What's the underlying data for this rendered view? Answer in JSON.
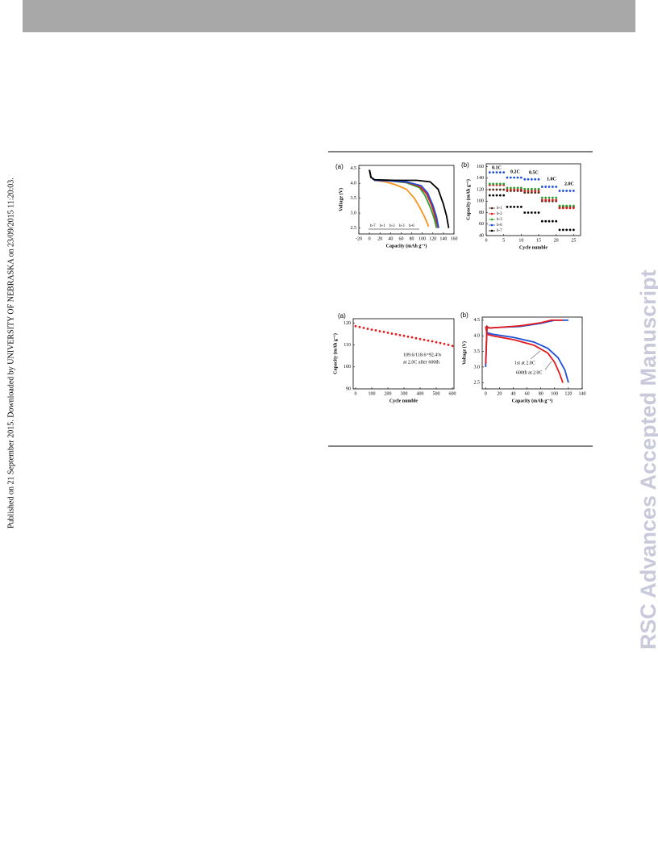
{
  "page": {
    "side_note": "Published on 21 September 2015. Downloaded by UNIVERSITY OF NEBRASKA on 23/09/2015 11:20:03.",
    "watermark": "RSC Advances Accepted Manuscript"
  },
  "chart_data": [
    {
      "type": "line",
      "panel": "(a)",
      "xlabel": "Capacity (mAh g⁻¹)",
      "ylabel": "Voltage (V)",
      "xlim": [
        -20,
        160
      ],
      "xticks": [
        -20,
        0,
        20,
        40,
        60,
        80,
        100,
        120,
        140,
        160
      ],
      "ylim": [
        2.3,
        4.6
      ],
      "yticks": [
        2.5,
        {
          "value": 3,
          "label": "3.0"
        },
        3.5,
        {
          "value": 4,
          "label": "4.0"
        },
        4.5
      ],
      "series": [
        {
          "name": "b-7",
          "color": "#f7941d",
          "x": [
            0,
            3,
            10,
            30,
            50,
            70,
            85,
            95,
            105,
            112
          ],
          "values": [
            4.45,
            4.2,
            4.1,
            4.05,
            3.95,
            3.8,
            3.5,
            3.2,
            2.85,
            2.55
          ]
        },
        {
          "name": "b-1",
          "color": "#2ca02c",
          "x": [
            0,
            3,
            10,
            40,
            70,
            95,
            105,
            115,
            122,
            127
          ],
          "values": [
            4.45,
            4.2,
            4.1,
            4.08,
            4.02,
            3.85,
            3.6,
            3.2,
            2.85,
            2.5
          ]
        },
        {
          "name": "b-2",
          "color": "#e31a1c",
          "x": [
            0,
            3,
            10,
            40,
            70,
            95,
            108,
            118,
            125,
            130
          ],
          "values": [
            4.45,
            4.2,
            4.1,
            4.08,
            4.04,
            3.9,
            3.65,
            3.25,
            2.85,
            2.5
          ]
        },
        {
          "name": "b-3",
          "color": "#1f4fd8",
          "x": [
            0,
            3,
            10,
            40,
            70,
            98,
            110,
            120,
            127,
            131
          ],
          "values": [
            4.45,
            4.2,
            4.1,
            4.08,
            4.05,
            3.92,
            3.68,
            3.27,
            2.87,
            2.5
          ]
        },
        {
          "name": "b-6",
          "color": "#000000",
          "x": [
            0,
            3,
            10,
            50,
            90,
            115,
            130,
            140,
            146,
            150
          ],
          "values": [
            4.45,
            4.2,
            4.12,
            4.1,
            4.1,
            4.05,
            3.8,
            3.3,
            2.9,
            2.5
          ]
        }
      ]
    },
    {
      "type": "scatter",
      "panel": "(b)",
      "xlabel": "Cycle numble",
      "ylabel": "Capacity (mAh g⁻¹)",
      "xlim": [
        0,
        27
      ],
      "xticks": [
        0,
        5,
        10,
        15,
        20,
        25
      ],
      "ylim": [
        40,
        165
      ],
      "yticks": [
        40,
        60,
        80,
        100,
        120,
        140,
        160
      ],
      "annotations": [
        "0.1C",
        "0.2C",
        "0.5C",
        "1.0C",
        "2.0C"
      ],
      "x": [
        1,
        2,
        3,
        4,
        5,
        6,
        7,
        8,
        9,
        10,
        11,
        12,
        13,
        14,
        15,
        16,
        17,
        18,
        19,
        20,
        21,
        22,
        23,
        24,
        25
      ],
      "series": [
        {
          "name": "b-1",
          "color": "#5a2a1a",
          "values": [
            120,
            120,
            120,
            120,
            120,
            118,
            118,
            118,
            118,
            118,
            115,
            115,
            115,
            115,
            115,
            100,
            100,
            100,
            100,
            100,
            90,
            90,
            90,
            90,
            90
          ]
        },
        {
          "name": "b-2",
          "color": "#e31a1c",
          "values": [
            128,
            128,
            128,
            128,
            128,
            120,
            120,
            120,
            120,
            120,
            118,
            118,
            118,
            118,
            118,
            102,
            102,
            102,
            102,
            102,
            88,
            88,
            88,
            88,
            88
          ]
        },
        {
          "name": "b-3",
          "color": "#2ca02c",
          "values": [
            130,
            130,
            130,
            130,
            130,
            123,
            123,
            123,
            123,
            123,
            121,
            121,
            121,
            121,
            121,
            106,
            106,
            106,
            106,
            106,
            92,
            92,
            92,
            92,
            92
          ]
        },
        {
          "name": "b-6",
          "color": "#1f4fd8",
          "values": [
            150,
            150,
            150,
            150,
            150,
            141,
            141,
            141,
            141,
            141,
            138,
            138,
            138,
            138,
            138,
            125,
            125,
            125,
            125,
            125,
            118,
            118,
            118,
            118,
            118
          ]
        },
        {
          "name": "b-7",
          "color": "#000000",
          "values": [
            110,
            110,
            110,
            110,
            110,
            90,
            90,
            90,
            90,
            90,
            80,
            80,
            80,
            80,
            80,
            65,
            65,
            65,
            65,
            65,
            50,
            50,
            50,
            50,
            50
          ]
        }
      ]
    },
    {
      "type": "scatter",
      "panel": "(a)",
      "xlabel": "Cycle numble",
      "ylabel": "Capacity (mAh g⁻¹)",
      "xlim": [
        -15,
        610
      ],
      "xticks": [
        0,
        100,
        200,
        300,
        400,
        500,
        600
      ],
      "ylim": [
        90,
        122
      ],
      "yticks": [
        90,
        100,
        110,
        120
      ],
      "annotations": [
        "109.6/118.6=92.4%",
        "at 2.0C after 600th"
      ],
      "series": [
        {
          "color": "#e31a1c",
          "x": [
            0,
            25,
            50,
            75,
            100,
            125,
            150,
            175,
            200,
            225,
            250,
            275,
            300,
            325,
            350,
            375,
            400,
            425,
            450,
            475,
            500,
            525,
            550,
            575,
            600
          ],
          "values": [
            118.6,
            118.2,
            117.8,
            117.4,
            117.0,
            116.7,
            116.3,
            116.0,
            115.6,
            115.2,
            114.9,
            114.5,
            114.2,
            113.8,
            113.5,
            113.1,
            112.7,
            112.4,
            112.0,
            111.7,
            111.3,
            110.9,
            110.5,
            110.1,
            109.6
          ]
        }
      ]
    },
    {
      "type": "line",
      "panel": "(b)",
      "xlabel": "Capacity (mAh g⁻¹)",
      "ylabel": "Voltage (V)",
      "xlim": [
        -5,
        140
      ],
      "xticks": [
        0,
        20,
        40,
        60,
        80,
        100,
        120,
        140
      ],
      "ylim": [
        2.3,
        4.6
      ],
      "yticks": [
        2.5,
        {
          "value": 3,
          "label": "3.0"
        },
        3.5,
        {
          "value": 4,
          "label": "4.0"
        },
        4.5
      ],
      "annotations": [
        "1st at 2.0C",
        "600th at 2.0C"
      ],
      "series": [
        {
          "color": "#1f4fd8",
          "x": [
            0,
            2,
            5,
            20,
            50,
            80,
            100,
            120
          ],
          "values": [
            3.0,
            4.3,
            4.25,
            4.27,
            4.3,
            4.4,
            4.5,
            4.5
          ]
        },
        {
          "color": "#e31a1c",
          "x": [
            0,
            2,
            5,
            20,
            50,
            80,
            95,
            112
          ],
          "values": [
            3.1,
            4.3,
            4.25,
            4.27,
            4.32,
            4.42,
            4.5,
            4.5
          ]
        },
        {
          "color": "#1f4fd8",
          "x": [
            0,
            2,
            10,
            40,
            70,
            90,
            105,
            115,
            120
          ],
          "values": [
            4.3,
            4.1,
            4.05,
            3.95,
            3.8,
            3.6,
            3.3,
            2.9,
            2.5
          ]
        },
        {
          "color": "#e31a1c",
          "x": [
            0,
            2,
            10,
            40,
            70,
            90,
            100,
            107,
            112
          ],
          "values": [
            4.3,
            4.05,
            4.0,
            3.88,
            3.7,
            3.45,
            3.15,
            2.8,
            2.5
          ]
        }
      ]
    }
  ]
}
